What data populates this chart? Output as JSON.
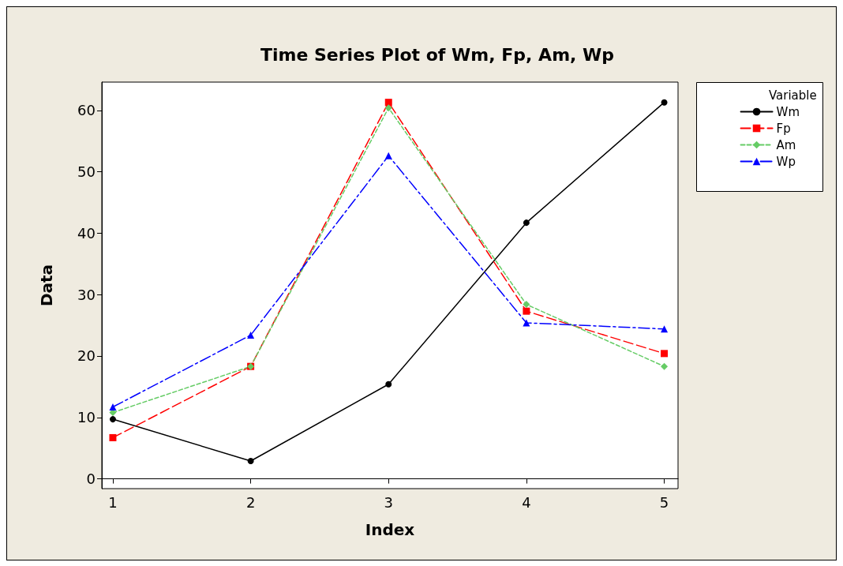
{
  "chart_data": {
    "type": "line",
    "title": "Time Series Plot of Wm, Fp, Am, Wp",
    "xlabel": "Index",
    "ylabel": "Data",
    "legend_title": "Variable",
    "legend": "top right",
    "x": [
      1,
      2,
      3,
      4,
      5
    ],
    "xlim": [
      0.92,
      5.1
    ],
    "xticks": [
      1,
      2,
      3,
      4,
      5
    ],
    "ylim": [
      -1.6,
      64.6
    ],
    "yticks": [
      0,
      10,
      20,
      30,
      40,
      50,
      60
    ],
    "series": [
      {
        "name": "Wm",
        "color": "#000000",
        "marker": "circle",
        "line_style": "solid",
        "values": [
          9.7,
          2.9,
          15.4,
          41.7,
          61.3
        ]
      },
      {
        "name": "Fp",
        "color": "#ff0000",
        "marker": "square",
        "line_style": "dashed",
        "values": [
          6.7,
          18.3,
          61.3,
          27.3,
          20.4
        ]
      },
      {
        "name": "Am",
        "color": "#66cc66",
        "marker": "diamond",
        "line_style": "dotted",
        "values": [
          10.8,
          18.3,
          60.4,
          28.4,
          18.3
        ]
      },
      {
        "name": "Wp",
        "color": "#0000ff",
        "marker": "triangle",
        "line_style": "dashdot",
        "values": [
          11.7,
          23.4,
          52.6,
          25.4,
          24.4
        ]
      }
    ]
  }
}
